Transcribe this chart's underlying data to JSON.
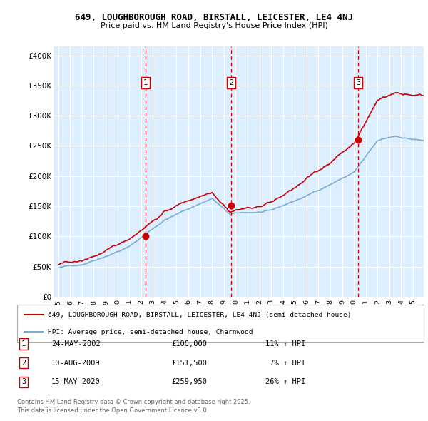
{
  "title1": "649, LOUGHBOROUGH ROAD, BIRSTALL, LEICESTER, LE4 4NJ",
  "title2": "Price paid vs. HM Land Registry's House Price Index (HPI)",
  "ylabel_ticks": [
    "£0",
    "£50K",
    "£100K",
    "£150K",
    "£200K",
    "£250K",
    "£300K",
    "£350K",
    "£400K"
  ],
  "ytick_values": [
    0,
    50000,
    100000,
    150000,
    200000,
    250000,
    300000,
    350000,
    400000
  ],
  "ylim": [
    0,
    415000
  ],
  "sale_dates": [
    "24-MAY-2002",
    "10-AUG-2009",
    "15-MAY-2020"
  ],
  "sale_years": [
    2002.39,
    2009.61,
    2020.37
  ],
  "sale_prices": [
    100000,
    151500,
    259950
  ],
  "sale_labels": [
    "1",
    "2",
    "3"
  ],
  "red_color": "#cc0000",
  "blue_color": "#7aadd4",
  "background_color": "#ddeeff",
  "legend_label_red": "649, LOUGHBOROUGH ROAD, BIRSTALL, LEICESTER, LE4 4NJ (semi-detached house)",
  "legend_label_blue": "HPI: Average price, semi-detached house, Charnwood",
  "footer1": "Contains HM Land Registry data © Crown copyright and database right 2025.",
  "footer2": "This data is licensed under the Open Government Licence v3.0.",
  "sale_info": [
    [
      "1",
      "24-MAY-2002",
      "£100,000",
      "11% ↑ HPI"
    ],
    [
      "2",
      "10-AUG-2009",
      "£151,500",
      " 7% ↑ HPI"
    ],
    [
      "3",
      "15-MAY-2020",
      "£259,950",
      "26% ↑ HPI"
    ]
  ]
}
